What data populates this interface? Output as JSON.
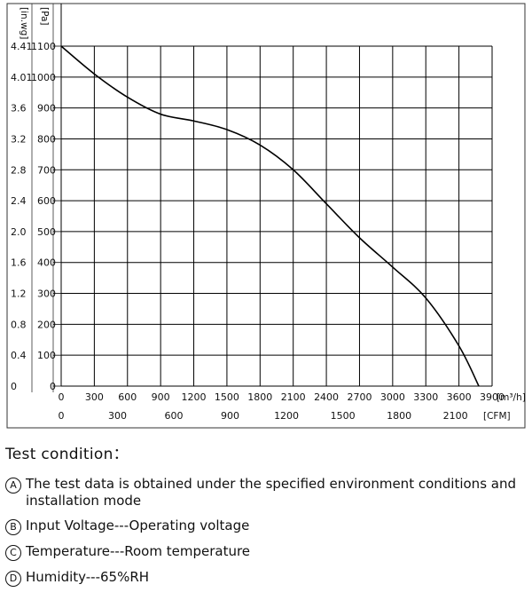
{
  "chart_data": {
    "type": "line",
    "series": [
      {
        "x": [
          0,
          300,
          600,
          900,
          1200,
          1500,
          1800,
          2100,
          2400,
          2700,
          3000,
          3300,
          3600,
          3780
        ],
        "y": [
          1100,
          1010,
          935,
          880,
          858,
          830,
          780,
          700,
          590,
          480,
          385,
          285,
          130,
          0
        ]
      }
    ],
    "xlim": [
      0,
      3900
    ],
    "ylim": [
      0,
      1100
    ],
    "x_ticks_m3h": [
      "0",
      "300",
      "600",
      "900",
      "1200",
      "1500",
      "1800",
      "2100",
      "2400",
      "2700",
      "3000",
      "3300",
      "3600",
      "3900"
    ],
    "x_unit_m3h": "[m³/h]",
    "x_ticks_cfm": [
      "0",
      "300",
      "600",
      "900",
      "1200",
      "1500",
      "1800",
      "2100"
    ],
    "x_unit_cfm": "[CFM]",
    "y_ticks_pa": [
      "0",
      "100",
      "200",
      "300",
      "400",
      "500",
      "600",
      "700",
      "800",
      "900",
      "1000",
      "1100"
    ],
    "y_unit_pa": "[Pa]",
    "y_ticks_inwg": [
      "0",
      "0.4",
      "0.8",
      "1.2",
      "1.6",
      "2.0",
      "2.4",
      "2.8",
      "3.2",
      "3.6",
      "4.01",
      "4.41"
    ],
    "y_unit_inwg": "[in.wg]",
    "grid": true,
    "colors": {
      "curve": "#000000",
      "grid": "#000000",
      "frame": "#333333"
    }
  },
  "conditions": {
    "title": "Test condition：",
    "items": [
      {
        "marker": "A",
        "text": "The test data is obtained under the specified environment conditions and installation mode"
      },
      {
        "marker": "B",
        "text": "Input Voltage---Operating voltage"
      },
      {
        "marker": "C",
        "text": "Temperature---Room temperature"
      },
      {
        "marker": "D",
        "text": "Humidity---65%RH"
      }
    ]
  }
}
